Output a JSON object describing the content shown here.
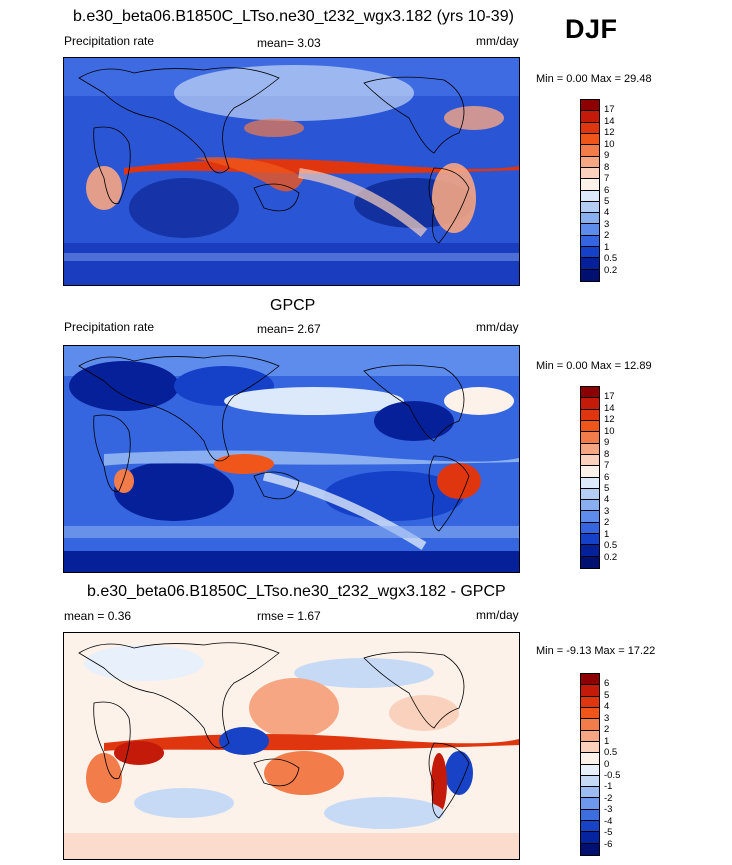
{
  "season": "DJF",
  "panels": [
    {
      "title": "b.e30_beta06.B1850C_LTso.ne30_t232_wgx3.182 (yrs 10-39)",
      "left_label": "Precipitation rate",
      "center_label": "mean=   3.03",
      "right_label": "mm/day",
      "minmax": "Min =   0.00 Max =  29.48",
      "colorbar_levels": [
        "17",
        "14",
        "12",
        "10",
        "9",
        "8",
        "7",
        "6",
        "5",
        "4",
        "3",
        "2",
        "1",
        "0.5",
        "0.2"
      ],
      "colorbar_colors": [
        "#8c0000",
        "#c41a0a",
        "#e0360f",
        "#f0561a",
        "#f27c4a",
        "#f6a683",
        "#fad1bd",
        "#fdf2ea",
        "#dce9fa",
        "#b3cdf5",
        "#8aaff0",
        "#5e8ced",
        "#3566e0",
        "#1540c8",
        "#06209a",
        "#001070"
      ]
    },
    {
      "title": "GPCP",
      "left_label": "Precipitation rate",
      "center_label": "mean=   2.67",
      "right_label": "mm/day",
      "minmax": "Min =   0.00 Max =  12.89",
      "colorbar_levels": [
        "17",
        "14",
        "12",
        "10",
        "9",
        "8",
        "7",
        "6",
        "5",
        "4",
        "3",
        "2",
        "1",
        "0.5",
        "0.2"
      ],
      "colorbar_colors": [
        "#8c0000",
        "#c41a0a",
        "#e0360f",
        "#f0561a",
        "#f27c4a",
        "#f6a683",
        "#fad1bd",
        "#fdf2ea",
        "#dce9fa",
        "#b3cdf5",
        "#8aaff0",
        "#5e8ced",
        "#3566e0",
        "#1540c8",
        "#06209a",
        "#001070"
      ]
    },
    {
      "title": "b.e30_beta06.B1850C_LTso.ne30_t232_wgx3.182 - GPCP",
      "left_label": "mean =   0.36",
      "center_label": "rmse =   1.67",
      "right_label": "mm/day",
      "minmax": "Min =  -9.13 Max =  17.22",
      "colorbar_levels": [
        "6",
        "5",
        "4",
        "3",
        "2",
        "1",
        "0.5",
        "0",
        "-0.5",
        "-1",
        "-2",
        "-3",
        "-4",
        "-5",
        "-6"
      ],
      "colorbar_colors": [
        "#8c0000",
        "#c41a0a",
        "#e0360f",
        "#f0561a",
        "#f27c4a",
        "#f6a683",
        "#fad1bd",
        "#fdf2ea",
        "#e8f0fb",
        "#c6daf6",
        "#9dbdf2",
        "#6e98ec",
        "#3e6edd",
        "#1843c6",
        "#0724a0",
        "#001070"
      ]
    }
  ]
}
